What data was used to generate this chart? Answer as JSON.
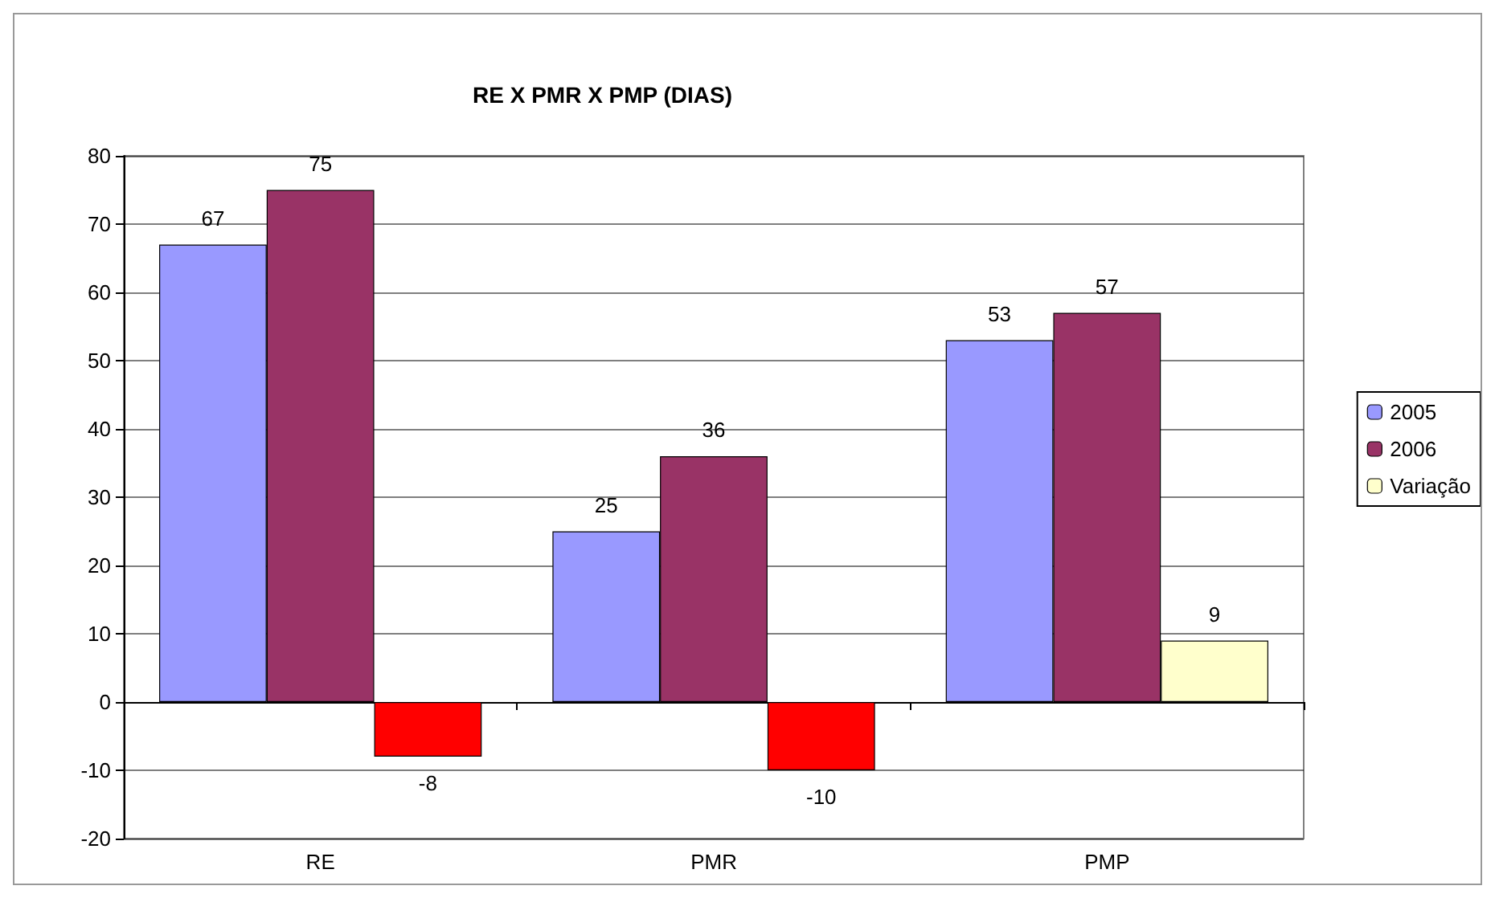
{
  "chart_data": {
    "type": "bar",
    "title": "RE X PMR X PMP (DIAS)",
    "categories": [
      "RE",
      "PMR",
      "PMP"
    ],
    "series": [
      {
        "name": "2005",
        "color": "#9999ff",
        "values": [
          67,
          25,
          53
        ]
      },
      {
        "name": "2006",
        "color": "#993366",
        "values": [
          75,
          36,
          57
        ]
      },
      {
        "name": "Variação",
        "color": "#ffffcc",
        "colors": [
          "#ff0000",
          "#ff0000",
          "#ffffcc"
        ],
        "values": [
          -8,
          -10,
          9
        ]
      }
    ],
    "ylim": [
      -20,
      80
    ],
    "yticks": [
      -20,
      -10,
      0,
      10,
      20,
      30,
      40,
      50,
      60,
      70,
      80
    ],
    "grid": "y",
    "legend": "right",
    "data_labels": true
  }
}
